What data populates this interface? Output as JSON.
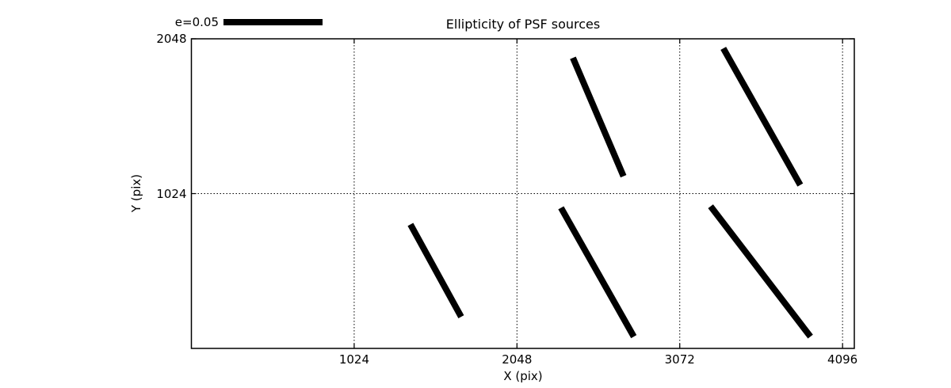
{
  "figure": {
    "background_color": "#ffffff",
    "foreground_color": "#000000"
  },
  "chart_data": {
    "type": "whisker",
    "title": "Ellipticity of PSF sources",
    "xlabel": "X (pix)",
    "ylabel": "Y (pix)",
    "xlim": [
      0,
      4170
    ],
    "ylim": [
      0,
      2048
    ],
    "x_ticks": [
      1024,
      2048,
      3072,
      4096
    ],
    "y_ticks": [
      1024,
      2048
    ],
    "grid": {
      "style": "dotted",
      "x_lines": [
        1024,
        2048,
        3072,
        4096
      ],
      "y_lines": [
        1024
      ]
    },
    "legend": {
      "label": "e=0.05",
      "e_value": 0.05,
      "bar_length_data_units": 618
    },
    "whiskers": [
      {
        "x1": 2400,
        "y1": 1922,
        "x2": 2718,
        "y2": 1139,
        "e_est": 0.066
      },
      {
        "x1": 3346,
        "y1": 1985,
        "x2": 3830,
        "y2": 1081,
        "e_est": 0.08
      },
      {
        "x1": 1378,
        "y1": 820,
        "x2": 1697,
        "y2": 209,
        "e_est": 0.054
      },
      {
        "x1": 2325,
        "y1": 930,
        "x2": 2783,
        "y2": 78,
        "e_est": 0.075
      },
      {
        "x1": 3266,
        "y1": 940,
        "x2": 3894,
        "y2": 78,
        "e_est": 0.084
      }
    ],
    "stroke_color": "#000000",
    "stroke_width_px": 8,
    "legend_position": "upper-left-outside",
    "grid_on": true
  }
}
